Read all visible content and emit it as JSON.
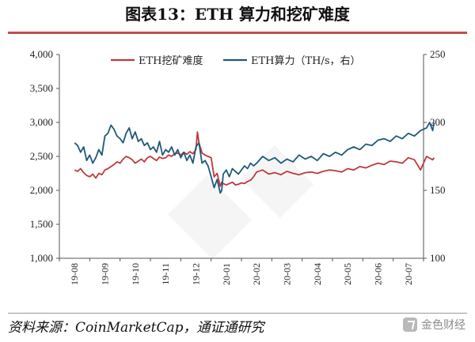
{
  "page": {
    "title": "图表13：ETH 算力和挖矿难度",
    "source": "资料来源：CoinMarketCap，通证通研究",
    "brand": "金色财经"
  },
  "colors": {
    "difficulty": "#c0393b",
    "hashrate": "#1f5a7a",
    "rule": "#c0504d"
  },
  "chart_data": {
    "type": "line",
    "x_ticks": [
      "19-08",
      "19-09",
      "19-10",
      "19-11",
      "19-12",
      "20-01",
      "20-02",
      "20-03",
      "20-04",
      "20-05",
      "20-06",
      "20-07"
    ],
    "left_axis": {
      "min": 1000,
      "max": 4000,
      "ticks": [
        "1,000",
        "1,500",
        "2,000",
        "2,500",
        "3,000",
        "3,500",
        "4,000"
      ]
    },
    "right_axis": {
      "min": 100,
      "max": 250,
      "ticks": [
        "100",
        "150",
        "200",
        "250"
      ]
    },
    "legend_position": "top",
    "series": [
      {
        "name": "ETH挖矿难度",
        "axis": "left",
        "x": [
          0,
          0.1,
          0.2,
          0.3,
          0.4,
          0.5,
          0.6,
          0.7,
          0.8,
          0.9,
          1.0,
          1.1,
          1.2,
          1.3,
          1.4,
          1.5,
          1.6,
          1.7,
          1.8,
          1.9,
          2.0,
          2.1,
          2.2,
          2.3,
          2.4,
          2.5,
          2.6,
          2.7,
          2.8,
          2.9,
          3.0,
          3.1,
          3.2,
          3.3,
          3.4,
          3.5,
          3.6,
          3.7,
          3.8,
          3.9,
          4.0,
          4.05,
          4.1,
          4.2,
          4.3,
          4.4,
          4.5,
          4.6,
          4.7,
          4.8,
          4.85,
          4.9,
          5.0,
          5.1,
          5.2,
          5.3,
          5.4,
          5.5,
          5.6,
          5.7,
          5.8,
          5.9,
          6.0,
          6.2,
          6.4,
          6.6,
          6.8,
          7.0,
          7.2,
          7.4,
          7.6,
          7.8,
          8.0,
          8.2,
          8.4,
          8.6,
          8.8,
          9.0,
          9.2,
          9.4,
          9.6,
          9.8,
          10.0,
          10.2,
          10.4,
          10.6,
          10.8,
          11.0,
          11.2,
          11.4,
          11.6,
          11.8,
          11.85
        ],
        "y": [
          2300,
          2280,
          2320,
          2260,
          2220,
          2200,
          2240,
          2180,
          2250,
          2230,
          2300,
          2320,
          2350,
          2380,
          2420,
          2400,
          2460,
          2500,
          2480,
          2450,
          2400,
          2430,
          2460,
          2420,
          2480,
          2500,
          2470,
          2440,
          2490,
          2470,
          2480,
          2520,
          2500,
          2540,
          2550,
          2520,
          2560,
          2530,
          2570,
          2540,
          2600,
          2860,
          2700,
          2550,
          2520,
          2500,
          2480,
          2200,
          2250,
          2060,
          2120,
          2100,
          2080,
          2100,
          2120,
          2080,
          2090,
          2110,
          2100,
          2130,
          2150,
          2200,
          2270,
          2300,
          2240,
          2260,
          2230,
          2280,
          2250,
          2230,
          2260,
          2270,
          2250,
          2280,
          2300,
          2290,
          2270,
          2320,
          2300,
          2350,
          2330,
          2370,
          2400,
          2380,
          2430,
          2420,
          2400,
          2480,
          2450,
          2300,
          2500,
          2450,
          2480
        ]
      },
      {
        "name": "ETH算力（TH/s，右）",
        "axis": "right",
        "x": [
          0,
          0.1,
          0.2,
          0.3,
          0.4,
          0.5,
          0.6,
          0.7,
          0.8,
          0.9,
          1.0,
          1.1,
          1.2,
          1.3,
          1.4,
          1.5,
          1.6,
          1.7,
          1.8,
          1.9,
          2.0,
          2.1,
          2.2,
          2.3,
          2.4,
          2.5,
          2.6,
          2.7,
          2.8,
          2.9,
          3.0,
          3.1,
          3.2,
          3.3,
          3.4,
          3.5,
          3.6,
          3.7,
          3.8,
          3.9,
          4.0,
          4.1,
          4.2,
          4.3,
          4.4,
          4.5,
          4.6,
          4.7,
          4.8,
          4.85,
          4.9,
          5.0,
          5.1,
          5.2,
          5.3,
          5.4,
          5.5,
          5.6,
          5.7,
          5.8,
          5.9,
          6.0,
          6.2,
          6.4,
          6.6,
          6.8,
          7.0,
          7.2,
          7.4,
          7.6,
          7.8,
          8.0,
          8.2,
          8.4,
          8.6,
          8.8,
          9.0,
          9.2,
          9.4,
          9.6,
          9.8,
          10.0,
          10.2,
          10.4,
          10.6,
          10.8,
          11.0,
          11.2,
          11.4,
          11.6,
          11.7,
          11.8,
          11.85
        ],
        "y": [
          185,
          183,
          178,
          182,
          172,
          176,
          170,
          174,
          180,
          176,
          190,
          192,
          198,
          195,
          190,
          188,
          185,
          192,
          196,
          188,
          193,
          186,
          188,
          183,
          185,
          180,
          182,
          178,
          186,
          176,
          180,
          178,
          182,
          176,
          180,
          174,
          178,
          172,
          176,
          170,
          182,
          185,
          170,
          172,
          168,
          160,
          152,
          158,
          148,
          150,
          162,
          165,
          160,
          166,
          164,
          162,
          165,
          168,
          166,
          170,
          168,
          170,
          175,
          172,
          174,
          170,
          173,
          171,
          176,
          173,
          175,
          172,
          177,
          175,
          178,
          176,
          180,
          182,
          180,
          184,
          183,
          187,
          188,
          186,
          190,
          188,
          192,
          190,
          194,
          196,
          200,
          194,
          200
        ]
      }
    ]
  }
}
